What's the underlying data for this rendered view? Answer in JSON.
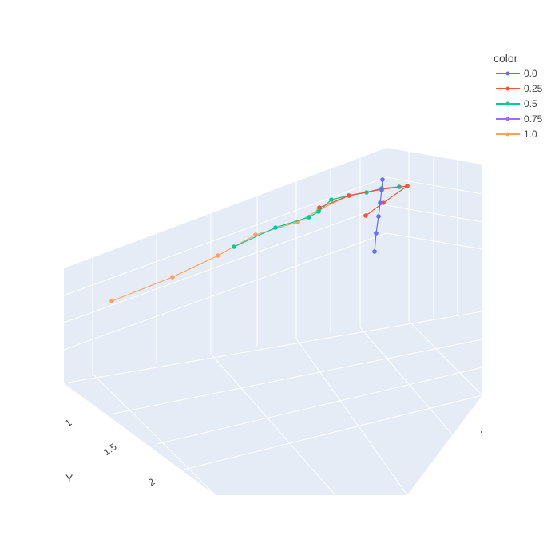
{
  "chart_data": {
    "type": "line",
    "mode": "lines+markers",
    "projection": "3d",
    "legend": {
      "title": "color",
      "placement": "top-right",
      "entries": [
        {
          "name": "0.0",
          "color": "#636efa"
        },
        {
          "name": "0.25",
          "color": "#EF553B"
        },
        {
          "name": "0.5",
          "color": "#00cc96"
        },
        {
          "name": "0.75",
          "color": "#ab63fa"
        },
        {
          "name": "1.0",
          "color": "#FFA15A"
        }
      ]
    },
    "axes": {
      "y": {
        "title": "Y",
        "ticks": [
          "1",
          "1.5",
          "2"
        ]
      }
    },
    "grid": true,
    "scene_background": "#e5ecf6",
    "series": [
      {
        "name": "1.0",
        "color": "#FFA15A",
        "points": [
          [
            140,
            377
          ],
          [
            216,
            347
          ],
          [
            273,
            320
          ],
          [
            320,
            294
          ],
          [
            373,
            278
          ],
          [
            399,
            263
          ],
          [
            437,
            245
          ],
          [
            478,
            237
          ],
          [
            500,
            234
          ]
        ]
      },
      {
        "name": "0.5",
        "color": "#00cc96",
        "points": [
          [
            293,
            309
          ],
          [
            345,
            285
          ],
          [
            387,
            272
          ],
          [
            399,
            265
          ],
          [
            415,
            250
          ],
          [
            437,
            245
          ],
          [
            459,
            241
          ],
          [
            478,
            236
          ],
          [
            500,
            234
          ]
        ]
      },
      {
        "name": "0.25",
        "color": "#EF553B",
        "points": [
          [
            400,
            260
          ],
          [
            437,
            245
          ],
          [
            478,
            237
          ],
          [
            510,
            233
          ],
          [
            480,
            254
          ],
          [
            458,
            270
          ]
        ]
      },
      {
        "name": "0.0",
        "color": "#636efa",
        "points": [
          [
            479,
            225
          ],
          [
            478,
            238
          ],
          [
            476,
            254
          ],
          [
            474,
            271
          ],
          [
            471,
            292
          ],
          [
            469,
            315
          ]
        ]
      }
    ]
  }
}
